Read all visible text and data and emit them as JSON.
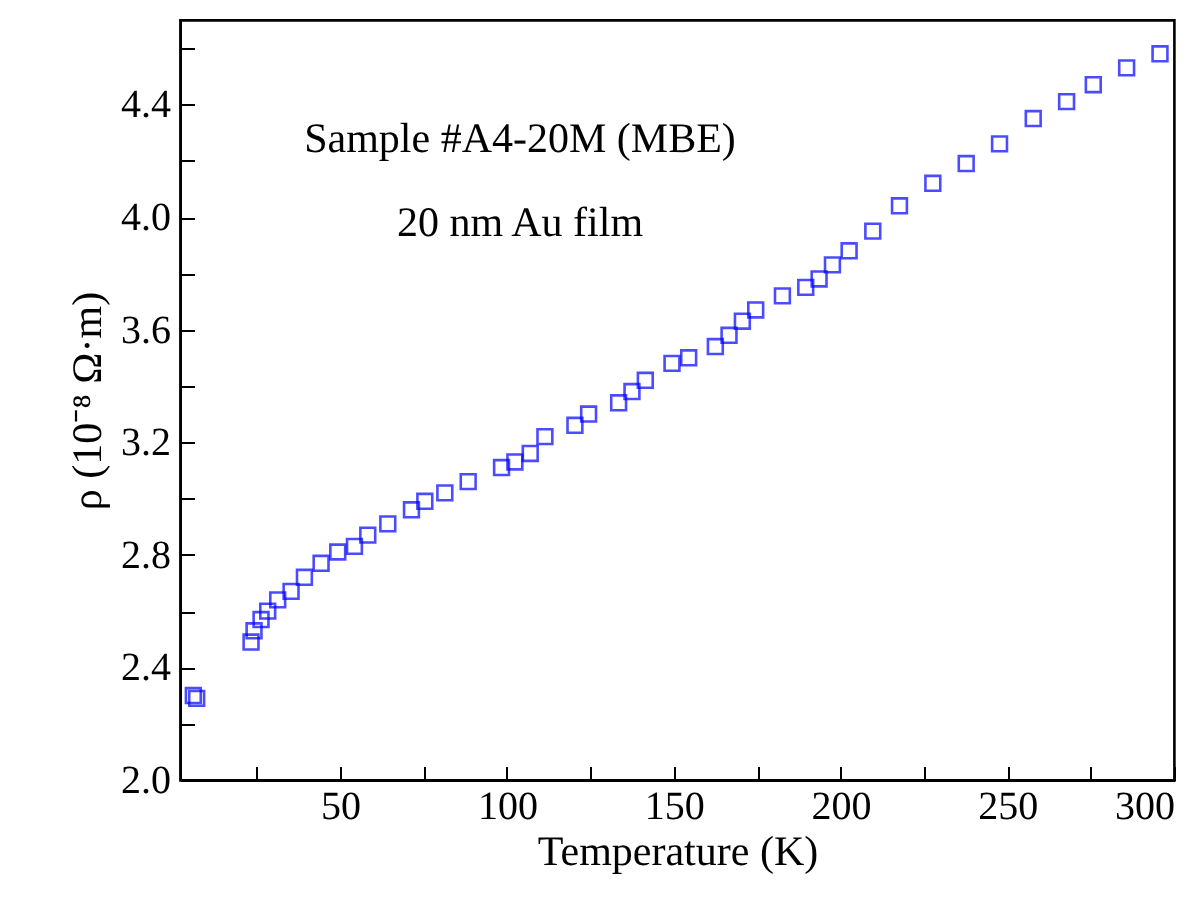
{
  "chart_data": {
    "type": "scatter",
    "xlabel": "Temperature (K)",
    "ylabel": "ρ (10⁻⁸ Ω·m)",
    "annotations": [
      "Sample #A4-20M (MBE)",
      "20 nm Au film"
    ],
    "x": [
      6,
      7,
      23.3,
      24.2,
      26.3,
      28.3,
      31.3,
      35.3,
      39.3,
      44.3,
      49.3,
      54.3,
      58.3,
      64.3,
      71.4,
      75.4,
      81.4,
      88.4,
      98.4,
      102.4,
      107,
      111.4,
      120.4,
      124.5,
      133.5,
      137.5,
      141.5,
      149.5,
      154.5,
      162.5,
      166.6,
      170.6,
      174.6,
      182.6,
      189.6,
      193.6,
      197.6,
      202.6,
      209.7,
      217.7,
      227.7,
      237.7,
      247.7,
      257.8,
      267.8,
      275.8,
      285.8,
      295.8
    ],
    "series": [
      {
        "color": "#0000ff",
        "values": [
          2.3,
          2.29,
          2.49,
          2.53,
          2.57,
          2.6,
          2.64,
          2.67,
          2.72,
          2.77,
          2.81,
          2.83,
          2.87,
          2.91,
          2.96,
          2.99,
          3.02,
          3.06,
          3.11,
          3.13,
          3.16,
          3.22,
          3.26,
          3.3,
          3.34,
          3.38,
          3.42,
          3.48,
          3.5,
          3.54,
          3.58,
          3.63,
          3.67,
          3.72,
          3.75,
          3.78,
          3.83,
          3.88,
          3.95,
          4.04,
          4.12,
          4.19,
          4.26,
          4.35,
          4.41,
          4.47,
          4.53,
          4.58
        ]
      }
    ],
    "xlim": [
      2,
      300
    ],
    "xticks": [
      {
        "value": 25,
        "label": null
      },
      50,
      {
        "value": 75,
        "label": null
      },
      100,
      {
        "value": 125,
        "label": null
      },
      150,
      {
        "value": 175,
        "label": null
      },
      200,
      {
        "value": 225,
        "label": null
      },
      250,
      {
        "value": 275,
        "label": null
      },
      300
    ],
    "ylim": [
      2.0,
      4.7
    ],
    "yticks": [
      {
        "value": 2,
        "label": "2.0"
      },
      {
        "value": 2.2,
        "label": null
      },
      2.4,
      {
        "value": 2.6,
        "label": null
      },
      2.8,
      {
        "value": 3,
        "label": null
      },
      3.2,
      {
        "value": 3.4,
        "label": null
      },
      3.6,
      {
        "value": 3.8,
        "label": null
      },
      {
        "value": 4,
        "label": "4.0"
      },
      {
        "value": 4.2,
        "label": null
      },
      4.4,
      {
        "value": 4.6,
        "label": null
      }
    ],
    "marker": "square",
    "grid": false
  }
}
